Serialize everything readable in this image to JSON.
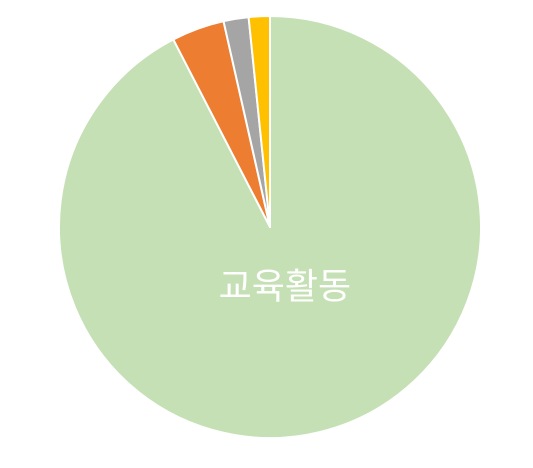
{
  "chart_data": {
    "type": "pie",
    "title": "",
    "slices": [
      {
        "label": "교육활동",
        "value": 91.5,
        "color": "#c5e0b4",
        "show_label": true
      },
      {
        "label": "",
        "value": 4.0,
        "color": "#ed7d31",
        "show_label": false
      },
      {
        "label": "",
        "value": 1.9,
        "color": "#a5a5a5",
        "show_label": false
      },
      {
        "label": "",
        "value": 1.6,
        "color": "#ffc000",
        "show_label": false
      }
    ],
    "start_angle_deg": 0,
    "direction": "clockwise",
    "legend": "none"
  }
}
